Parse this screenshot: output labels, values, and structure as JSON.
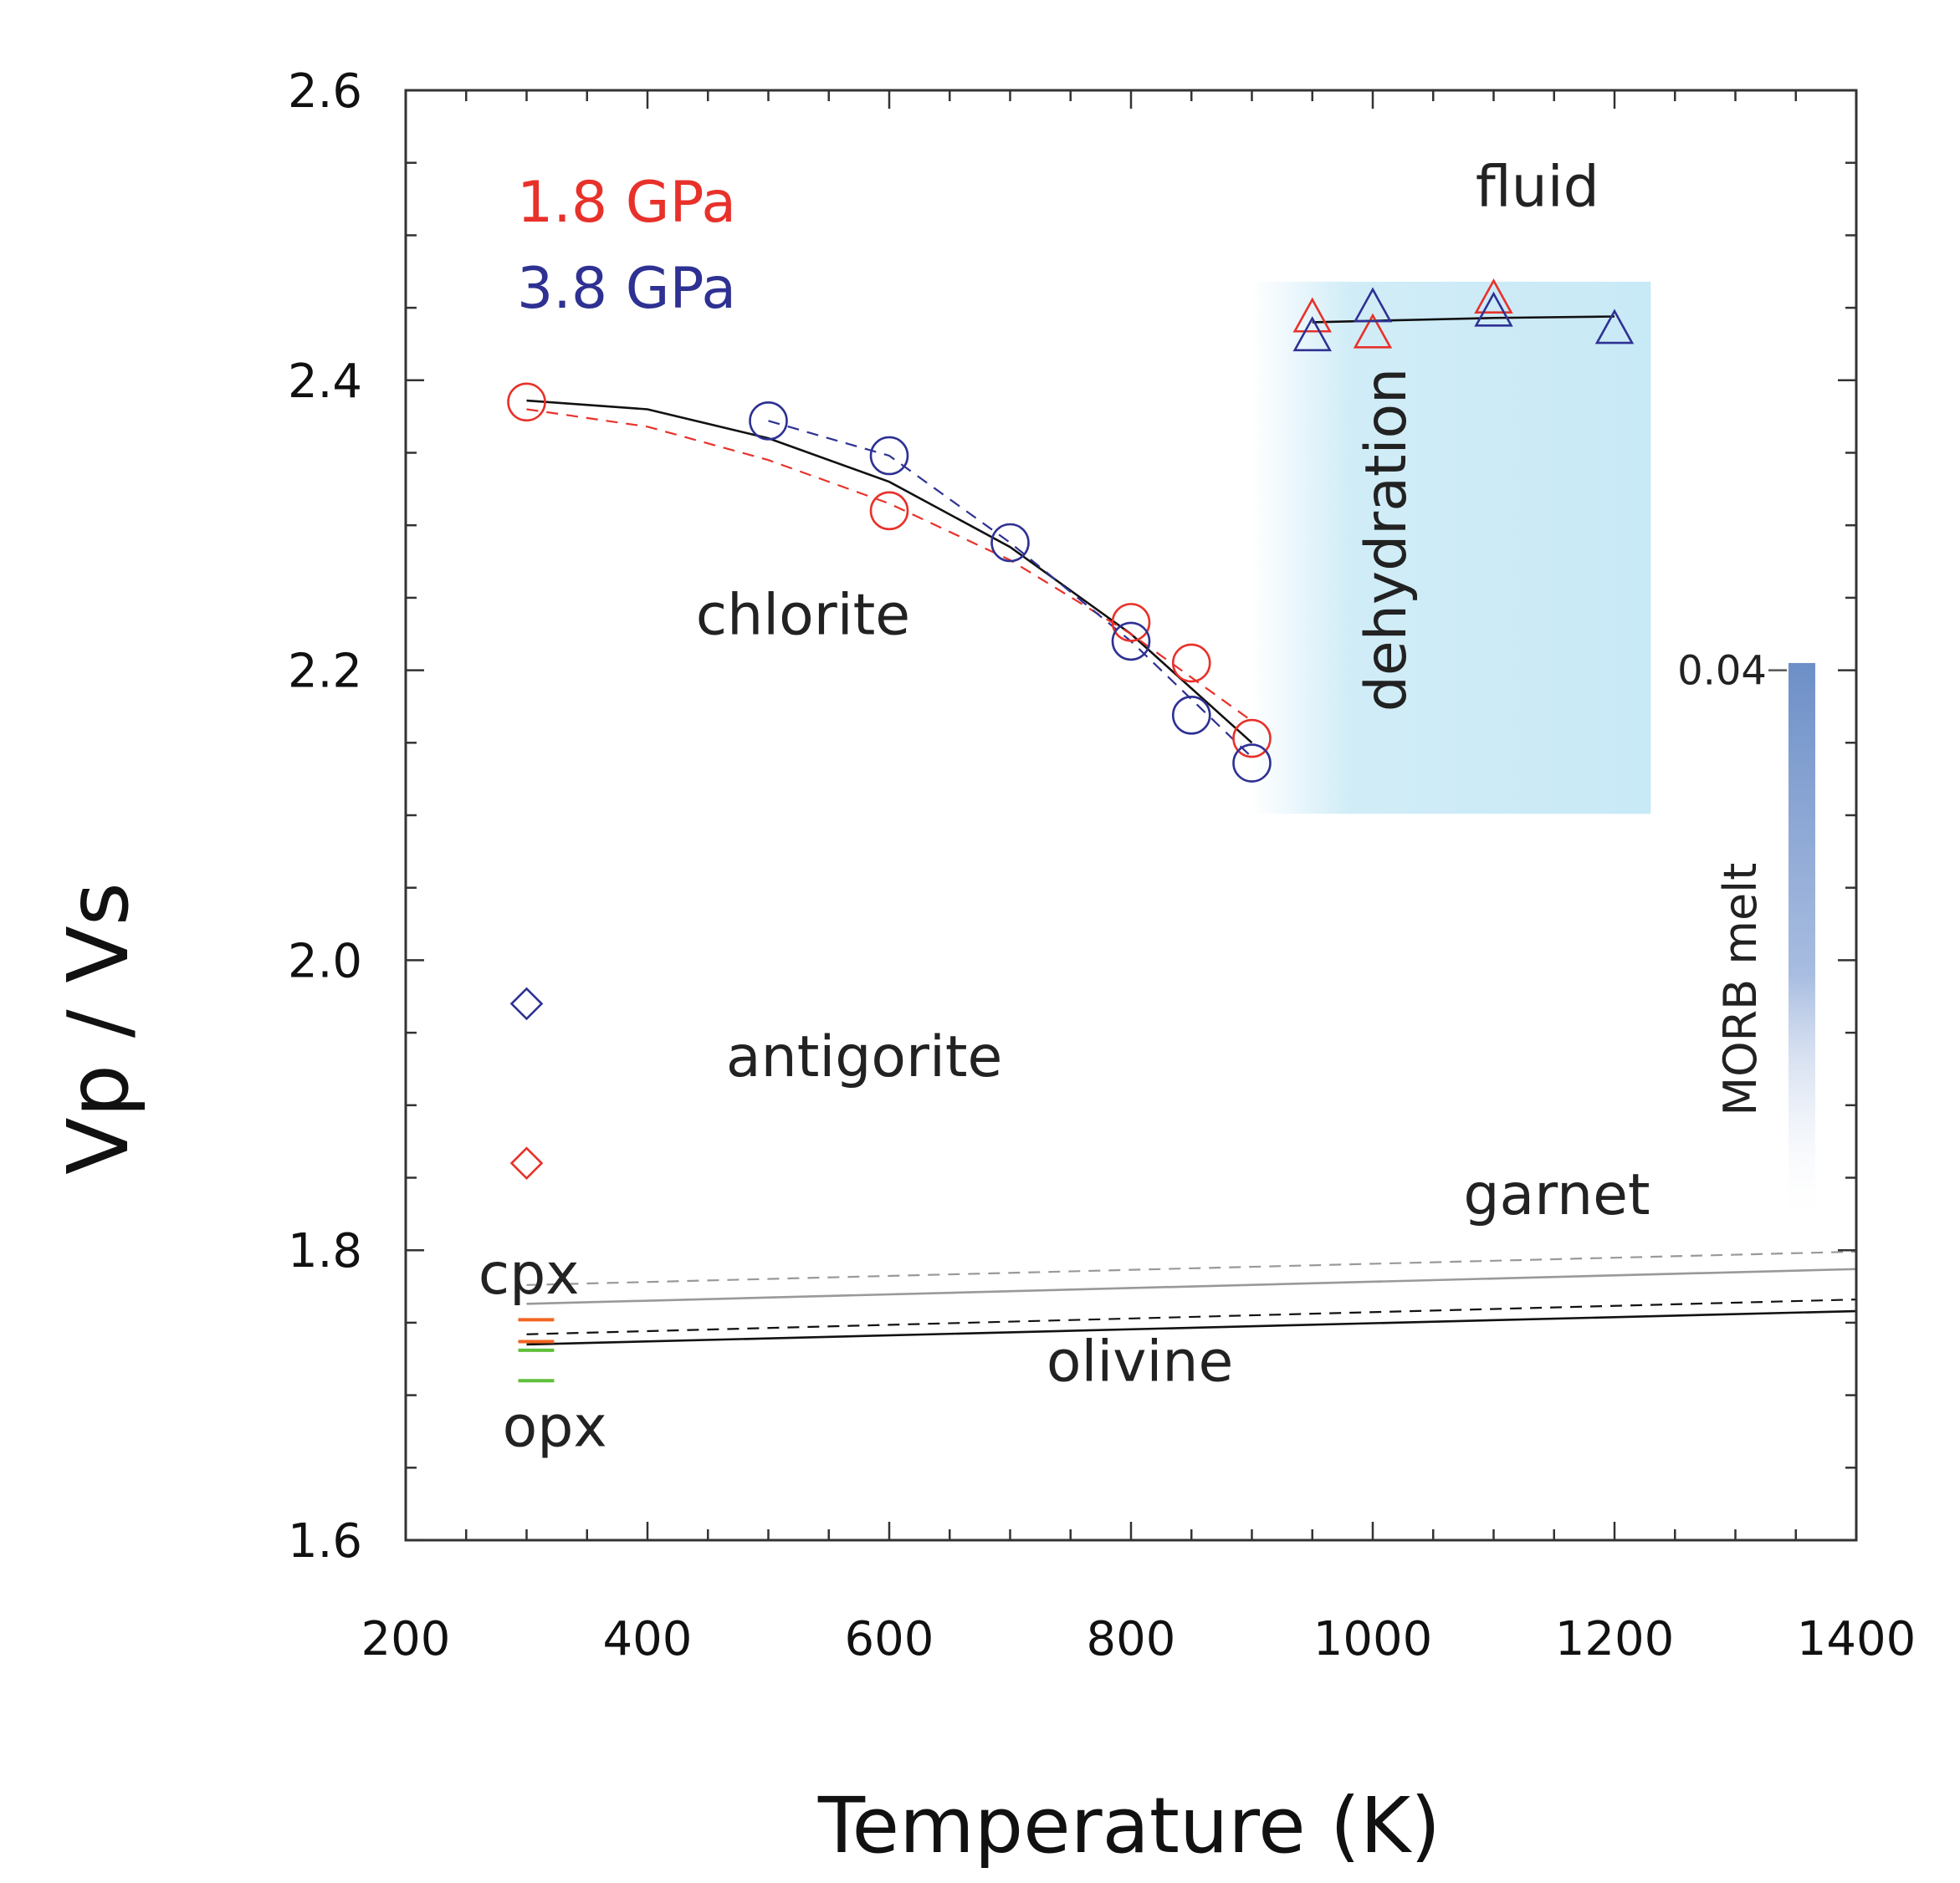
{
  "chart_data": {
    "type": "scatter",
    "title": "",
    "xlabel": "Temperature (K)",
    "ylabel": "Vp / Vs",
    "xlim": [
      200,
      1400
    ],
    "ylim": [
      1.6,
      2.6
    ],
    "xticks": [
      200,
      400,
      600,
      800,
      1000,
      1200,
      1400
    ],
    "yticks": [
      1.6,
      1.8,
      2.0,
      2.2,
      2.4,
      2.6
    ],
    "xtick_labels": [
      "200",
      "400",
      "600",
      "800",
      "1000",
      "1200",
      "1400"
    ],
    "ytick_labels": [
      "1.6",
      "1.8",
      "2.0",
      "2.2",
      "2.4",
      "2.6"
    ],
    "legend": {
      "placement": "top-left",
      "entries": [
        {
          "label": "1.8 GPa",
          "color": "#e8312a"
        },
        {
          "label": "3.8 GPa",
          "color": "#2e3192"
        }
      ]
    },
    "series": [
      {
        "name": "chlorite 1.8 GPa",
        "marker": "circle",
        "color": "#e8312a",
        "x": [
          300,
          600,
          800,
          850,
          900
        ],
        "y": [
          2.385,
          2.31,
          2.233,
          2.205,
          2.153
        ]
      },
      {
        "name": "chlorite 3.8 GPa",
        "marker": "circle",
        "color": "#2e3192",
        "x": [
          500,
          600,
          700,
          800,
          850,
          900
        ],
        "y": [
          2.372,
          2.348,
          2.288,
          2.22,
          2.169,
          2.136
        ]
      },
      {
        "name": "fluid 1.8 GPa",
        "marker": "triangle",
        "color": "#e8312a",
        "x": [
          950,
          1000,
          1100
        ],
        "y": [
          2.443,
          2.432,
          2.456
        ]
      },
      {
        "name": "fluid 3.8 GPa",
        "marker": "triangle",
        "color": "#2e3192",
        "x": [
          950,
          1000,
          1100,
          1200
        ],
        "y": [
          2.43,
          2.45,
          2.447,
          2.435
        ]
      },
      {
        "name": "antigorite 3.8 GPa",
        "marker": "diamond",
        "color": "#2e3192",
        "x": [
          300
        ],
        "y": [
          1.97
        ]
      },
      {
        "name": "antigorite 1.8 GPa",
        "marker": "diamond",
        "color": "#e8312a",
        "x": [
          300
        ],
        "y": [
          1.86
        ]
      }
    ],
    "fit_lines": [
      {
        "name": "chlorite fit",
        "style": "solid",
        "color": "#111111",
        "x": [
          300,
          400,
          500,
          600,
          700,
          800,
          900
        ],
        "y": [
          2.386,
          2.38,
          2.36,
          2.33,
          2.285,
          2.225,
          2.15
        ]
      },
      {
        "name": "chlorite 1.8 GPa trend",
        "style": "dashed",
        "color": "#e8312a",
        "x": [
          300,
          400,
          500,
          600,
          700,
          800,
          900
        ],
        "y": [
          2.38,
          2.368,
          2.345,
          2.315,
          2.276,
          2.225,
          2.165
        ]
      },
      {
        "name": "chlorite 3.8 GPa trend",
        "style": "dashed",
        "color": "#2e3192",
        "x": [
          500,
          600,
          700,
          800,
          850,
          900
        ],
        "y": [
          2.372,
          2.348,
          2.288,
          2.22,
          2.18,
          2.14
        ]
      },
      {
        "name": "fluid fit",
        "style": "solid",
        "color": "#111111",
        "x": [
          950,
          1100,
          1200
        ],
        "y": [
          2.44,
          2.443,
          2.444
        ]
      },
      {
        "name": "garnet dashed",
        "style": "dashed",
        "color": "#999999",
        "x": [
          300,
          1400
        ],
        "y": [
          1.776,
          1.799
        ]
      },
      {
        "name": "garnet solid",
        "style": "solid",
        "color": "#999999",
        "x": [
          300,
          1400
        ],
        "y": [
          1.763,
          1.787
        ]
      },
      {
        "name": "olivine dashed",
        "style": "dashed",
        "color": "#111111",
        "x": [
          300,
          1400
        ],
        "y": [
          1.742,
          1.766
        ]
      },
      {
        "name": "olivine solid",
        "style": "solid",
        "color": "#111111",
        "x": [
          300,
          1400
        ],
        "y": [
          1.735,
          1.758
        ]
      }
    ],
    "tick_marks": [
      {
        "name": "cpx 1",
        "color": "#f26522",
        "x": [
          300,
          320
        ],
        "y": 1.752
      },
      {
        "name": "cpx 2",
        "color": "#f26522",
        "x": [
          300,
          320
        ],
        "y": 1.737
      },
      {
        "name": "opx 1",
        "color": "#5fbf3a",
        "x": [
          300,
          320
        ],
        "y": 1.731
      },
      {
        "name": "opx 2",
        "color": "#5fbf3a",
        "x": [
          300,
          320
        ],
        "y": 1.71
      }
    ],
    "regions": [
      {
        "name": "dehydration",
        "color": "#c8e9f6",
        "x": [
          900,
          1230
        ],
        "y": [
          2.101,
          2.468
        ]
      }
    ],
    "morb_bar": {
      "label": "MORB melt",
      "value_label": "0.04",
      "color": "#6d8fc7",
      "x": 1355,
      "y": [
        1.815,
        2.205
      ],
      "tick_y": 2.2
    },
    "annotations": [
      {
        "text": "fluid",
        "x": 1085,
        "y": 2.52
      },
      {
        "text": "chlorite",
        "x": 440,
        "y": 2.225
      },
      {
        "text": "antigorite",
        "x": 465,
        "y": 1.92
      },
      {
        "text": "garnet",
        "x": 1075,
        "y": 1.825
      },
      {
        "text": "cpx",
        "x": 260,
        "y": 1.77
      },
      {
        "text": "olivine",
        "x": 730,
        "y": 1.71
      },
      {
        "text": "opx",
        "x": 280,
        "y": 1.665
      },
      {
        "text": "dehydration",
        "x": 1027,
        "y": 2.29,
        "rotated": true
      }
    ]
  }
}
